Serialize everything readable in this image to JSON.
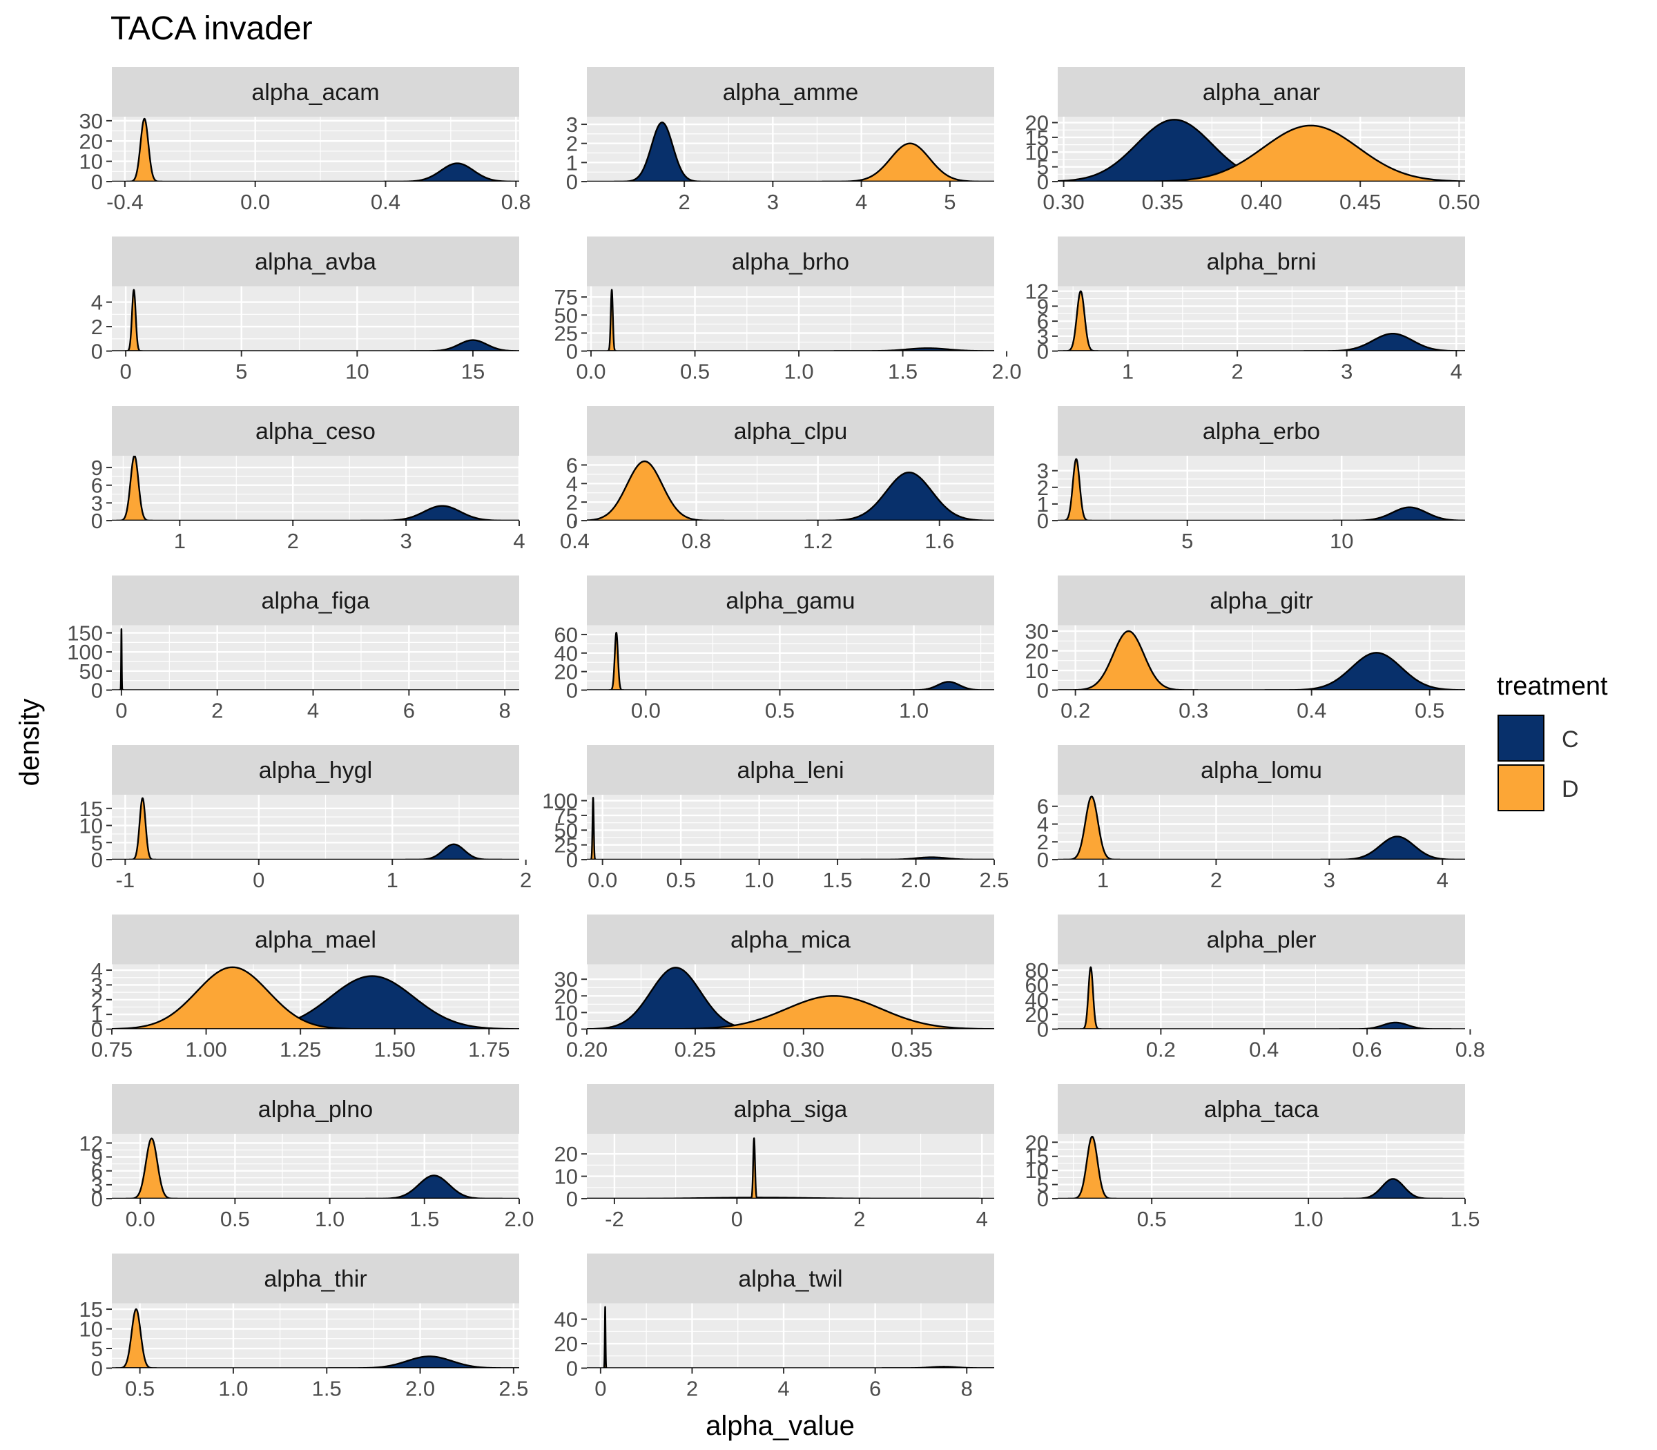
{
  "chart_data": {
    "type": "area",
    "title": "TACA invader",
    "xlabel": "alpha_value",
    "ylabel": "density",
    "legend": {
      "title": "treatment",
      "position": "right",
      "entries": [
        {
          "label": "C",
          "color": "#08306b"
        },
        {
          "label": "D",
          "color": "#fca636"
        }
      ]
    },
    "colors": {
      "C": "#08306b",
      "D": "#fca636",
      "panel_bg": "#ebebeb",
      "strip_bg": "#d9d9d9",
      "grid": "#ffffff"
    },
    "facets": [
      {
        "name": "alpha_acam",
        "xlim": [
          -0.44,
          0.81
        ],
        "ylim": [
          0,
          32
        ],
        "xticks": [
          -0.4,
          0.0,
          0.4,
          0.8
        ],
        "xtick_labels": [
          "-0.4",
          "0.0",
          "0.4",
          "0.8"
        ],
        "yticks": [
          0,
          10,
          20,
          30
        ],
        "series": [
          {
            "name": "C",
            "mean": 0.62,
            "sd": 0.05,
            "peak": 9
          },
          {
            "name": "D",
            "mean": -0.34,
            "sd": 0.012,
            "peak": 31
          }
        ]
      },
      {
        "name": "alpha_amme",
        "xlim": [
          0.9,
          5.5
        ],
        "ylim": [
          0,
          3.4
        ],
        "xticks": [
          2,
          3,
          4,
          5
        ],
        "xtick_labels": [
          "2",
          "3",
          "4",
          "5"
        ],
        "yticks": [
          0,
          1,
          2,
          3
        ],
        "series": [
          {
            "name": "C",
            "mean": 1.75,
            "sd": 0.12,
            "peak": 3.1
          },
          {
            "name": "D",
            "mean": 4.55,
            "sd": 0.22,
            "peak": 2.0
          }
        ]
      },
      {
        "name": "alpha_anar",
        "xlim": [
          0.297,
          0.503
        ],
        "ylim": [
          0,
          22
        ],
        "xticks": [
          0.3,
          0.35,
          0.4,
          0.45,
          0.5
        ],
        "xtick_labels": [
          "0.30",
          "0.35",
          "0.40",
          "0.45",
          "0.50"
        ],
        "yticks": [
          0,
          5,
          10,
          15,
          20
        ],
        "series": [
          {
            "name": "C",
            "mean": 0.356,
            "sd": 0.019,
            "peak": 21
          },
          {
            "name": "D",
            "mean": 0.425,
            "sd": 0.024,
            "peak": 19
          }
        ]
      },
      {
        "name": "alpha_avba",
        "xlim": [
          -0.6,
          17.0
        ],
        "ylim": [
          0,
          5.3
        ],
        "xticks": [
          0,
          5,
          10,
          15
        ],
        "xtick_labels": [
          "0",
          "5",
          "10",
          "15"
        ],
        "yticks": [
          0,
          2,
          4
        ],
        "series": [
          {
            "name": "C",
            "mean": 15.0,
            "sd": 0.6,
            "peak": 0.9
          },
          {
            "name": "D",
            "mean": 0.35,
            "sd": 0.08,
            "peak": 5.0
          }
        ]
      },
      {
        "name": "alpha_brho",
        "xlim": [
          -0.02,
          1.94
        ],
        "ylim": [
          0,
          90
        ],
        "xticks": [
          0.0,
          0.5,
          1.0,
          1.5,
          2.0
        ],
        "xtick_labels": [
          "0.0",
          "0.5",
          "1.0",
          "1.5",
          "2.0"
        ],
        "yticks": [
          0,
          25,
          50,
          75
        ],
        "series": [
          {
            "name": "C",
            "mean": 1.62,
            "sd": 0.1,
            "peak": 4
          },
          {
            "name": "D",
            "mean": 0.1,
            "sd": 0.005,
            "peak": 85
          }
        ]
      },
      {
        "name": "alpha_brni",
        "xlim": [
          0.36,
          4.08
        ],
        "ylim": [
          0,
          13
        ],
        "xticks": [
          1,
          2,
          3,
          4
        ],
        "xtick_labels": [
          "1",
          "2",
          "3",
          "4"
        ],
        "yticks": [
          0,
          3,
          6,
          9,
          12
        ],
        "series": [
          {
            "name": "C",
            "mean": 3.42,
            "sd": 0.18,
            "peak": 3.5
          },
          {
            "name": "D",
            "mean": 0.57,
            "sd": 0.035,
            "peak": 12
          }
        ]
      },
      {
        "name": "alpha_ceso",
        "xlim": [
          0.4,
          4.0
        ],
        "ylim": [
          0,
          11
        ],
        "xticks": [
          1,
          2,
          3,
          4
        ],
        "xtick_labels": [
          "1",
          "2",
          "3",
          "4"
        ],
        "yticks": [
          0,
          3,
          6,
          9
        ],
        "series": [
          {
            "name": "C",
            "mean": 3.32,
            "sd": 0.16,
            "peak": 2.5
          },
          {
            "name": "D",
            "mean": 0.6,
            "sd": 0.035,
            "peak": 11
          }
        ]
      },
      {
        "name": "alpha_clpu",
        "xlim": [
          0.44,
          1.78
        ],
        "ylim": [
          0,
          7
        ],
        "xticks": [
          0.4,
          0.8,
          1.2,
          1.6
        ],
        "xtick_labels": [
          "0.4",
          "0.8",
          "1.2",
          "1.6"
        ],
        "yticks": [
          0,
          2,
          4,
          6
        ],
        "series": [
          {
            "name": "C",
            "mean": 1.5,
            "sd": 0.075,
            "peak": 5.2
          },
          {
            "name": "D",
            "mean": 0.63,
            "sd": 0.058,
            "peak": 6.4
          }
        ]
      },
      {
        "name": "alpha_erbo",
        "xlim": [
          0.8,
          14.0
        ],
        "ylim": [
          0,
          3.9
        ],
        "xticks": [
          5,
          10
        ],
        "xtick_labels": [
          "5",
          "10"
        ],
        "yticks": [
          0,
          1,
          2,
          3
        ],
        "series": [
          {
            "name": "C",
            "mean": 12.2,
            "sd": 0.55,
            "peak": 0.8
          },
          {
            "name": "D",
            "mean": 1.4,
            "sd": 0.11,
            "peak": 3.7
          }
        ]
      },
      {
        "name": "alpha_figa",
        "xlim": [
          -0.2,
          8.3
        ],
        "ylim": [
          0,
          170
        ],
        "xticks": [
          0,
          2,
          4,
          6,
          8
        ],
        "xtick_labels": [
          "0",
          "2",
          "4",
          "6",
          "8"
        ],
        "yticks": [
          0,
          50,
          100,
          150
        ],
        "series": [
          {
            "name": "C",
            "mean": 0.0,
            "sd": 0.01,
            "peak": 5
          },
          {
            "name": "D",
            "mean": 0.0,
            "sd": 0.006,
            "peak": 160
          }
        ]
      },
      {
        "name": "alpha_gamu",
        "xlim": [
          -0.22,
          1.3
        ],
        "ylim": [
          0,
          70
        ],
        "xticks": [
          0.0,
          0.5,
          1.0
        ],
        "xtick_labels": [
          "0.0",
          "0.5",
          "1.0"
        ],
        "yticks": [
          0,
          20,
          40,
          60
        ],
        "series": [
          {
            "name": "C",
            "mean": 1.13,
            "sd": 0.04,
            "peak": 9
          },
          {
            "name": "D",
            "mean": -0.11,
            "sd": 0.006,
            "peak": 62
          }
        ]
      },
      {
        "name": "alpha_gitr",
        "xlim": [
          0.185,
          0.53
        ],
        "ylim": [
          0,
          33
        ],
        "xticks": [
          0.2,
          0.3,
          0.4,
          0.5
        ],
        "xtick_labels": [
          "0.2",
          "0.3",
          "0.4",
          "0.5"
        ],
        "yticks": [
          0,
          10,
          20,
          30
        ],
        "series": [
          {
            "name": "C",
            "mean": 0.455,
            "sd": 0.021,
            "peak": 19
          },
          {
            "name": "D",
            "mean": 0.245,
            "sd": 0.013,
            "peak": 30
          }
        ]
      },
      {
        "name": "alpha_hygl",
        "xlim": [
          -1.1,
          1.95
        ],
        "ylim": [
          0,
          19
        ],
        "xticks": [
          -1,
          0,
          1,
          2
        ],
        "xtick_labels": [
          "-1",
          "0",
          "1",
          "2"
        ],
        "yticks": [
          0,
          5,
          10,
          15
        ],
        "series": [
          {
            "name": "C",
            "mean": 1.46,
            "sd": 0.08,
            "peak": 4.5
          },
          {
            "name": "D",
            "mean": -0.87,
            "sd": 0.022,
            "peak": 18
          }
        ]
      },
      {
        "name": "alpha_leni",
        "xlim": [
          -0.1,
          2.5
        ],
        "ylim": [
          0,
          110
        ],
        "xticks": [
          0.0,
          0.5,
          1.0,
          1.5,
          2.0,
          2.5
        ],
        "xtick_labels": [
          "0.0",
          "0.5",
          "1.0",
          "1.5",
          "2.0",
          "2.5"
        ],
        "yticks": [
          0,
          25,
          50,
          75,
          100
        ],
        "series": [
          {
            "name": "C",
            "mean": 2.1,
            "sd": 0.1,
            "peak": 4
          },
          {
            "name": "D",
            "mean": -0.06,
            "sd": 0.004,
            "peak": 105
          }
        ]
      },
      {
        "name": "alpha_lomu",
        "xlim": [
          0.6,
          4.2
        ],
        "ylim": [
          0,
          7.3
        ],
        "xticks": [
          1,
          2,
          3,
          4
        ],
        "xtick_labels": [
          "1",
          "2",
          "3",
          "4"
        ],
        "yticks": [
          0,
          2,
          4,
          6
        ],
        "series": [
          {
            "name": "C",
            "mean": 3.6,
            "sd": 0.15,
            "peak": 2.6
          },
          {
            "name": "D",
            "mean": 0.9,
            "sd": 0.055,
            "peak": 7.1
          }
        ]
      },
      {
        "name": "alpha_mael",
        "xlim": [
          0.75,
          1.83
        ],
        "ylim": [
          0,
          4.4
        ],
        "xticks": [
          0.75,
          1.0,
          1.25,
          1.5,
          1.75
        ],
        "xtick_labels": [
          "0.75",
          "1.00",
          "1.25",
          "1.50",
          "1.75"
        ],
        "yticks": [
          0,
          1,
          2,
          3,
          4
        ],
        "series": [
          {
            "name": "C",
            "mean": 1.44,
            "sd": 0.11,
            "peak": 3.6
          },
          {
            "name": "D",
            "mean": 1.07,
            "sd": 0.095,
            "peak": 4.2
          }
        ]
      },
      {
        "name": "alpha_mica",
        "xlim": [
          0.2,
          0.388
        ],
        "ylim": [
          0,
          39
        ],
        "xticks": [
          0.2,
          0.25,
          0.3,
          0.35
        ],
        "xtick_labels": [
          "0.20",
          "0.25",
          "0.30",
          "0.35"
        ],
        "yticks": [
          0,
          10,
          20,
          30
        ],
        "series": [
          {
            "name": "C",
            "mean": 0.241,
            "sd": 0.0115,
            "peak": 37
          },
          {
            "name": "D",
            "mean": 0.314,
            "sd": 0.022,
            "peak": 20
          }
        ]
      },
      {
        "name": "alpha_pler",
        "xlim": [
          0.0,
          0.79
        ],
        "ylim": [
          0,
          88
        ],
        "xticks": [
          0.2,
          0.4,
          0.6,
          0.8
        ],
        "xtick_labels": [
          "0.2",
          "0.4",
          "0.6",
          "0.8"
        ],
        "yticks": [
          0,
          20,
          40,
          60,
          80
        ],
        "series": [
          {
            "name": "C",
            "mean": 0.655,
            "sd": 0.024,
            "peak": 9
          },
          {
            "name": "D",
            "mean": 0.064,
            "sd": 0.0045,
            "peak": 84
          }
        ]
      },
      {
        "name": "alpha_plno",
        "xlim": [
          -0.15,
          2.0
        ],
        "ylim": [
          0,
          14
        ],
        "xticks": [
          0.0,
          0.5,
          1.0,
          1.5,
          2.0
        ],
        "xtick_labels": [
          "0.0",
          "0.5",
          "1.0",
          "1.5",
          "2.0"
        ],
        "yticks": [
          0,
          3,
          6,
          9,
          12
        ],
        "series": [
          {
            "name": "C",
            "mean": 1.55,
            "sd": 0.08,
            "peak": 5
          },
          {
            "name": "D",
            "mean": 0.06,
            "sd": 0.03,
            "peak": 13
          }
        ]
      },
      {
        "name": "alpha_siga",
        "xlim": [
          -2.45,
          4.2
        ],
        "ylim": [
          0,
          29
        ],
        "xticks": [
          -2,
          0,
          2,
          4
        ],
        "xtick_labels": [
          "-2",
          "0",
          "2",
          "4"
        ],
        "yticks": [
          0,
          10,
          20
        ],
        "series": [
          {
            "name": "C",
            "mean": 0.35,
            "sd": 0.8,
            "peak": 0.5
          },
          {
            "name": "D",
            "mean": 0.28,
            "sd": 0.015,
            "peak": 27
          }
        ]
      },
      {
        "name": "alpha_taca",
        "xlim": [
          0.2,
          1.5
        ],
        "ylim": [
          0,
          23
        ],
        "xticks": [
          0.5,
          1.0,
          1.5
        ],
        "xtick_labels": [
          "0.5",
          "1.0",
          "1.5"
        ],
        "yticks": [
          0,
          5,
          10,
          15,
          20
        ],
        "series": [
          {
            "name": "C",
            "mean": 1.27,
            "sd": 0.035,
            "peak": 7
          },
          {
            "name": "D",
            "mean": 0.31,
            "sd": 0.017,
            "peak": 22
          }
        ]
      },
      {
        "name": "alpha_thir",
        "xlim": [
          0.35,
          2.53
        ],
        "ylim": [
          0,
          16.5
        ],
        "xticks": [
          0.5,
          1.0,
          1.5,
          2.0,
          2.5
        ],
        "xtick_labels": [
          "0.5",
          "1.0",
          "1.5",
          "2.0",
          "2.5"
        ],
        "yticks": [
          0,
          5,
          10,
          15
        ],
        "series": [
          {
            "name": "C",
            "mean": 2.05,
            "sd": 0.12,
            "peak": 3
          },
          {
            "name": "D",
            "mean": 0.48,
            "sd": 0.024,
            "peak": 15
          }
        ]
      },
      {
        "name": "alpha_twil",
        "xlim": [
          -0.3,
          8.6
        ],
        "ylim": [
          0,
          53
        ],
        "xticks": [
          0,
          2,
          4,
          6,
          8
        ],
        "xtick_labels": [
          "0",
          "2",
          "4",
          "6",
          "8"
        ],
        "yticks": [
          0,
          20,
          40
        ],
        "series": [
          {
            "name": "C",
            "mean": 7.5,
            "sd": 0.3,
            "peak": 1.2
          },
          {
            "name": "D",
            "mean": 0.1,
            "sd": 0.008,
            "peak": 50
          }
        ]
      }
    ]
  }
}
